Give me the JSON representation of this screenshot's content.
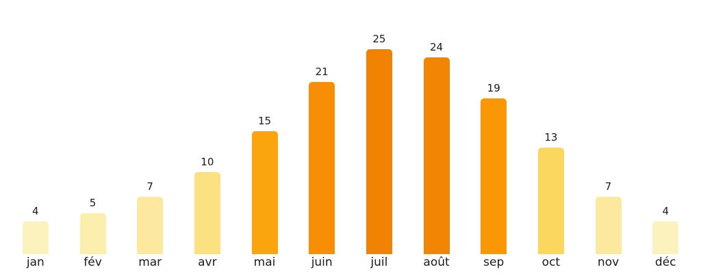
{
  "chart_data": {
    "type": "bar",
    "title": "",
    "xlabel": "",
    "ylabel": "",
    "categories": [
      "jan",
      "fév",
      "mar",
      "avr",
      "mai",
      "juin",
      "juil",
      "août",
      "sep",
      "oct",
      "nov",
      "déc"
    ],
    "values": [
      4,
      5,
      7,
      10,
      15,
      21,
      25,
      24,
      19,
      13,
      7,
      4
    ],
    "value_labels": [
      "4",
      "5",
      "7",
      "10",
      "15",
      "21",
      "25",
      "24",
      "19",
      "13",
      "7",
      "4"
    ],
    "bar_colors": [
      "#FCF2BD",
      "#FCEEAD",
      "#FCE99F",
      "#FBE182",
      "#FBA50E",
      "#F78E05",
      "#F18204",
      "#F28504",
      "#F99706",
      "#FBD760",
      "#FCE99F",
      "#FCF2BD"
    ],
    "ylim": [
      0,
      31
    ],
    "grid": false,
    "legend": null,
    "axes_visible": false,
    "value_label_position": "above-bar",
    "text_color": "#1a1a1a",
    "background_color": "#ffffff"
  }
}
